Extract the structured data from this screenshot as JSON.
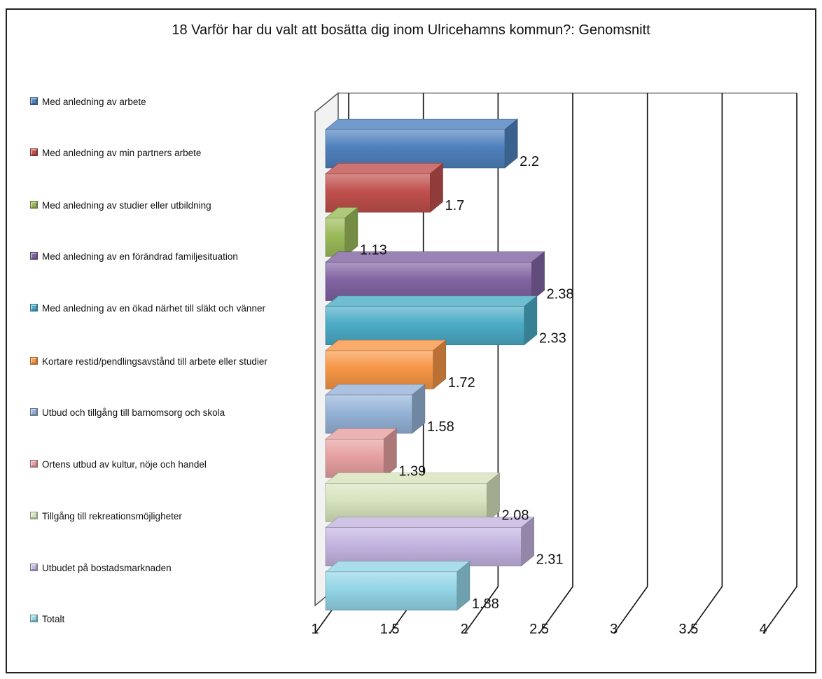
{
  "chart_data": {
    "type": "bar",
    "orientation": "horizontal",
    "three_d": true,
    "title": "18 Varför har du valt att bosätta dig inom Ulricehamns kommun?: Genomsnitt",
    "xlim": [
      1,
      4
    ],
    "x_ticks": [
      "1",
      "1.5",
      "2",
      "2.5",
      "3",
      "3.5",
      "4"
    ],
    "grid": true,
    "legend_position": "left",
    "categories": [
      "Med anledning av arbete",
      "Med anledning av min partners arbete",
      "Med anledning av studier eller utbildning",
      "Med anledning av en förändrad familjesituation",
      "Med anledning av en ökad närhet till släkt och vänner",
      "Kortare restid/pendlingsavstånd till arbete eller studier",
      "Utbud och tillgång till barnomsorg och skola",
      "Ortens utbud av kultur, nöje och handel",
      "Tillgång till rekreationsmöjligheter",
      "Utbudet på bostadsmarknaden",
      "Totalt"
    ],
    "values": [
      2.2,
      1.7,
      1.13,
      2.38,
      2.33,
      1.72,
      1.58,
      1.39,
      2.08,
      2.31,
      1.88
    ],
    "data_labels": [
      "2.2",
      "1.7",
      "1.13",
      "2.38",
      "2.33",
      "1.72",
      "1.58",
      "1.39",
      "2.08",
      "2.31",
      "1.88"
    ],
    "colors": [
      "#4f81bd",
      "#c0504d",
      "#9bbb59",
      "#8064a2",
      "#4bacc6",
      "#f79646",
      "#95b3d7",
      "#e6a0a0",
      "#d7e4bd",
      "#c3b4e0",
      "#93d5e6"
    ]
  }
}
